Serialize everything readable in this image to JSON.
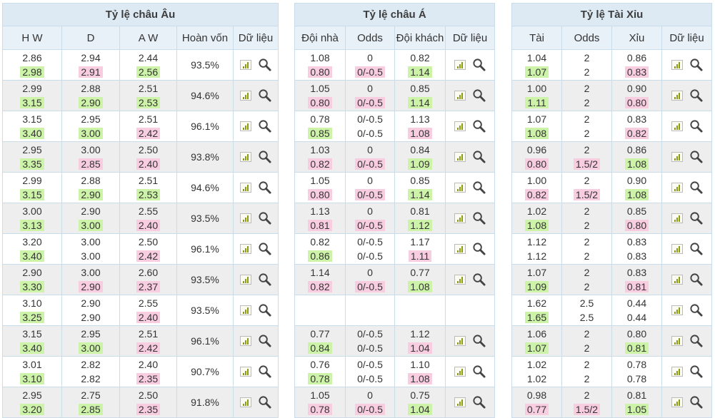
{
  "eu": {
    "title": "Tỷ lệ châu Âu",
    "headers": [
      "H W",
      "D",
      "A W",
      "Hoàn vốn",
      "Dữ liệu"
    ],
    "rows": [
      {
        "hw": [
          "2.86",
          "2.98"
        ],
        "hwc": [
          "",
          "up"
        ],
        "d": [
          "2.94",
          "2.91"
        ],
        "dc": [
          "",
          "dn"
        ],
        "aw": [
          "2.44",
          "2.56"
        ],
        "awc": [
          "",
          "up"
        ],
        "ret": "93.5%"
      },
      {
        "hw": [
          "2.99",
          "3.15"
        ],
        "hwc": [
          "",
          "up"
        ],
        "d": [
          "2.88",
          "2.90"
        ],
        "dc": [
          "",
          "up"
        ],
        "aw": [
          "2.51",
          "2.53"
        ],
        "awc": [
          "",
          "up"
        ],
        "ret": "94.6%"
      },
      {
        "hw": [
          "3.15",
          "3.40"
        ],
        "hwc": [
          "",
          "up"
        ],
        "d": [
          "2.95",
          "3.00"
        ],
        "dc": [
          "",
          "up"
        ],
        "aw": [
          "2.51",
          "2.42"
        ],
        "awc": [
          "",
          "dn"
        ],
        "ret": "96.1%"
      },
      {
        "hw": [
          "2.95",
          "3.35"
        ],
        "hwc": [
          "",
          "up"
        ],
        "d": [
          "3.00",
          "2.85"
        ],
        "dc": [
          "",
          "dn"
        ],
        "aw": [
          "2.50",
          "2.40"
        ],
        "awc": [
          "",
          "dn"
        ],
        "ret": "93.8%"
      },
      {
        "hw": [
          "2.99",
          "3.15"
        ],
        "hwc": [
          "",
          "up"
        ],
        "d": [
          "2.88",
          "2.90"
        ],
        "dc": [
          "",
          "up"
        ],
        "aw": [
          "2.51",
          "2.53"
        ],
        "awc": [
          "",
          "up"
        ],
        "ret": "94.6%"
      },
      {
        "hw": [
          "3.00",
          "3.13"
        ],
        "hwc": [
          "",
          "up"
        ],
        "d": [
          "2.90",
          "3.00"
        ],
        "dc": [
          "",
          "up"
        ],
        "aw": [
          "2.55",
          "2.40"
        ],
        "awc": [
          "",
          "dn"
        ],
        "ret": "93.5%"
      },
      {
        "hw": [
          "3.20",
          "3.40"
        ],
        "hwc": [
          "",
          "up"
        ],
        "d": [
          "3.00",
          "3.00"
        ],
        "dc": [
          "",
          ""
        ],
        "aw": [
          "2.50",
          "2.42"
        ],
        "awc": [
          "",
          "dn"
        ],
        "ret": "96.1%"
      },
      {
        "hw": [
          "2.90",
          "3.30"
        ],
        "hwc": [
          "",
          "up"
        ],
        "d": [
          "3.00",
          "2.90"
        ],
        "dc": [
          "",
          "dn"
        ],
        "aw": [
          "2.60",
          "2.37"
        ],
        "awc": [
          "",
          "dn"
        ],
        "ret": "93.5%"
      },
      {
        "hw": [
          "3.10",
          "3.25"
        ],
        "hwc": [
          "",
          "up"
        ],
        "d": [
          "2.90",
          "2.90"
        ],
        "dc": [
          "",
          ""
        ],
        "aw": [
          "2.55",
          "2.40"
        ],
        "awc": [
          "",
          "dn"
        ],
        "ret": "93.5%"
      },
      {
        "hw": [
          "3.15",
          "3.40"
        ],
        "hwc": [
          "",
          "up"
        ],
        "d": [
          "2.95",
          "3.00"
        ],
        "dc": [
          "",
          "up"
        ],
        "aw": [
          "2.51",
          "2.42"
        ],
        "awc": [
          "",
          "dn"
        ],
        "ret": "96.1%"
      },
      {
        "hw": [
          "3.01",
          "3.10"
        ],
        "hwc": [
          "",
          "up"
        ],
        "d": [
          "2.82",
          "2.82"
        ],
        "dc": [
          "",
          ""
        ],
        "aw": [
          "2.40",
          "2.35"
        ],
        "awc": [
          "",
          "dn"
        ],
        "ret": "90.7%"
      },
      {
        "hw": [
          "2.95",
          "3.20"
        ],
        "hwc": [
          "",
          "up"
        ],
        "d": [
          "2.75",
          "2.85"
        ],
        "dc": [
          "",
          "up"
        ],
        "aw": [
          "2.50",
          "2.35"
        ],
        "awc": [
          "",
          "dn"
        ],
        "ret": "91.8%"
      }
    ]
  },
  "asia": {
    "title": "Tỷ lệ châu Á",
    "headers": [
      "Đội nhà",
      "Odds",
      "Đội khách",
      "Dữ liệu"
    ],
    "rows": [
      {
        "h": [
          "1.08",
          "0.80"
        ],
        "hc": [
          "",
          "dn"
        ],
        "o": [
          "0",
          "0/-0.5"
        ],
        "oc": [
          "",
          "dn"
        ],
        "a": [
          "0.82",
          "1.14"
        ],
        "ac": [
          "",
          "up"
        ]
      },
      {
        "h": [
          "1.05",
          "0.80"
        ],
        "hc": [
          "",
          "dn"
        ],
        "o": [
          "0",
          "0/-0.5"
        ],
        "oc": [
          "",
          "dn"
        ],
        "a": [
          "0.85",
          "1.14"
        ],
        "ac": [
          "",
          "up"
        ]
      },
      {
        "h": [
          "0.78",
          "0.85"
        ],
        "hc": [
          "",
          "up"
        ],
        "o": [
          "0/-0.5",
          "0/-0.5"
        ],
        "oc": [
          "",
          ""
        ],
        "a": [
          "1.13",
          "1.08"
        ],
        "ac": [
          "",
          "dn"
        ]
      },
      {
        "h": [
          "1.03",
          "0.82"
        ],
        "hc": [
          "",
          "dn"
        ],
        "o": [
          "0",
          "0/-0.5"
        ],
        "oc": [
          "",
          "dn"
        ],
        "a": [
          "0.84",
          "1.09"
        ],
        "ac": [
          "",
          "up"
        ]
      },
      {
        "h": [
          "1.05",
          "0.80"
        ],
        "hc": [
          "",
          "dn"
        ],
        "o": [
          "0",
          "0/-0.5"
        ],
        "oc": [
          "",
          "dn"
        ],
        "a": [
          "0.85",
          "1.14"
        ],
        "ac": [
          "",
          "up"
        ]
      },
      {
        "h": [
          "1.13",
          "0.81"
        ],
        "hc": [
          "",
          "dn"
        ],
        "o": [
          "0",
          "0/-0.5"
        ],
        "oc": [
          "",
          "dn"
        ],
        "a": [
          "0.81",
          "1.12"
        ],
        "ac": [
          "",
          "up"
        ]
      },
      {
        "h": [
          "0.82",
          "0.86"
        ],
        "hc": [
          "",
          "up"
        ],
        "o": [
          "0/-0.5",
          "0/-0.5"
        ],
        "oc": [
          "",
          ""
        ],
        "a": [
          "1.17",
          "1.11"
        ],
        "ac": [
          "",
          "dn"
        ]
      },
      {
        "h": [
          "1.14",
          "0.82"
        ],
        "hc": [
          "",
          "dn"
        ],
        "o": [
          "0",
          "0/-0.5"
        ],
        "oc": [
          "",
          "dn"
        ],
        "a": [
          "0.77",
          "1.08"
        ],
        "ac": [
          "",
          "up"
        ]
      },
      {
        "empty": true
      },
      {
        "h": [
          "0.77",
          "0.84"
        ],
        "hc": [
          "",
          "up"
        ],
        "o": [
          "0/-0.5",
          "0/-0.5"
        ],
        "oc": [
          "",
          ""
        ],
        "a": [
          "1.12",
          "1.04"
        ],
        "ac": [
          "",
          "dn"
        ]
      },
      {
        "h": [
          "0.76",
          "0.78"
        ],
        "hc": [
          "",
          "up"
        ],
        "o": [
          "0/-0.5",
          "0/-0.5"
        ],
        "oc": [
          "",
          ""
        ],
        "a": [
          "1.10",
          "1.08"
        ],
        "ac": [
          "",
          "dn"
        ]
      },
      {
        "h": [
          "1.05",
          "0.78"
        ],
        "hc": [
          "",
          "dn"
        ],
        "o": [
          "0",
          "0/-0.5"
        ],
        "oc": [
          "",
          "dn"
        ],
        "a": [
          "0.75",
          "1.04"
        ],
        "ac": [
          "",
          "up"
        ]
      }
    ]
  },
  "ou": {
    "title": "Tỷ lệ Tài Xỉu",
    "headers": [
      "Tài",
      "Odds",
      "Xỉu",
      "Dữ liệu"
    ],
    "rows": [
      {
        "t": [
          "1.04",
          "1.07"
        ],
        "tc": [
          "",
          "up"
        ],
        "o": [
          "2",
          "2"
        ],
        "oc": [
          "",
          ""
        ],
        "x": [
          "0.86",
          "0.83"
        ],
        "xc": [
          "",
          "dn"
        ]
      },
      {
        "t": [
          "1.00",
          "1.11"
        ],
        "tc": [
          "",
          "up"
        ],
        "o": [
          "2",
          "2"
        ],
        "oc": [
          "",
          ""
        ],
        "x": [
          "0.90",
          "0.80"
        ],
        "xc": [
          "",
          "dn"
        ]
      },
      {
        "t": [
          "1.07",
          "1.08"
        ],
        "tc": [
          "",
          "up"
        ],
        "o": [
          "2",
          "2"
        ],
        "oc": [
          "",
          ""
        ],
        "x": [
          "0.83",
          "0.82"
        ],
        "xc": [
          "",
          "dn"
        ]
      },
      {
        "t": [
          "0.96",
          "0.80"
        ],
        "tc": [
          "",
          "dn"
        ],
        "o": [
          "2",
          "1.5/2"
        ],
        "oc": [
          "",
          "dn"
        ],
        "x": [
          "0.86",
          "1.08"
        ],
        "xc": [
          "",
          "up"
        ]
      },
      {
        "t": [
          "1.00",
          "0.82"
        ],
        "tc": [
          "",
          "dn"
        ],
        "o": [
          "2",
          "1.5/2"
        ],
        "oc": [
          "",
          "dn"
        ],
        "x": [
          "0.90",
          "1.08"
        ],
        "xc": [
          "",
          "up"
        ]
      },
      {
        "t": [
          "1.02",
          "1.08"
        ],
        "tc": [
          "",
          "up"
        ],
        "o": [
          "2",
          "2"
        ],
        "oc": [
          "",
          ""
        ],
        "x": [
          "0.85",
          "0.80"
        ],
        "xc": [
          "",
          "dn"
        ]
      },
      {
        "t": [
          "1.12",
          "1.12"
        ],
        "tc": [
          "",
          ""
        ],
        "o": [
          "2",
          "2"
        ],
        "oc": [
          "",
          ""
        ],
        "x": [
          "0.83",
          "0.83"
        ],
        "xc": [
          "",
          ""
        ]
      },
      {
        "t": [
          "1.07",
          "1.09"
        ],
        "tc": [
          "",
          "up"
        ],
        "o": [
          "2",
          "2"
        ],
        "oc": [
          "",
          ""
        ],
        "x": [
          "0.83",
          "0.81"
        ],
        "xc": [
          "",
          "dn"
        ]
      },
      {
        "t": [
          "1.62",
          "1.65"
        ],
        "tc": [
          "",
          "up"
        ],
        "o": [
          "2.5",
          "2.5"
        ],
        "oc": [
          "",
          ""
        ],
        "x": [
          "0.44",
          "0.44"
        ],
        "xc": [
          "",
          ""
        ]
      },
      {
        "t": [
          "1.06",
          "1.07"
        ],
        "tc": [
          "",
          "up"
        ],
        "o": [
          "2",
          "2"
        ],
        "oc": [
          "",
          ""
        ],
        "x": [
          "0.80",
          "0.81"
        ],
        "xc": [
          "",
          "up"
        ]
      },
      {
        "t": [
          "1.02",
          "1.02"
        ],
        "tc": [
          "",
          ""
        ],
        "o": [
          "2",
          "2"
        ],
        "oc": [
          "",
          ""
        ],
        "x": [
          "0.78",
          "0.78"
        ],
        "xc": [
          "",
          ""
        ]
      },
      {
        "t": [
          "0.98",
          "0.77"
        ],
        "tc": [
          "",
          "dn"
        ],
        "o": [
          "2",
          "1.5/2"
        ],
        "oc": [
          "",
          "dn"
        ],
        "x": [
          "0.81",
          "1.05"
        ],
        "xc": [
          "",
          "up"
        ]
      }
    ]
  },
  "icons": {
    "chart": "bar-chart-icon",
    "search": "magnifier-icon"
  },
  "colors": {
    "up": "#cdf3a9",
    "down": "#f9cde0",
    "header": "#dde9f3",
    "subheader": "#e9f1f8",
    "alt_row": "#eeeeee",
    "border": "#c9dcea"
  }
}
